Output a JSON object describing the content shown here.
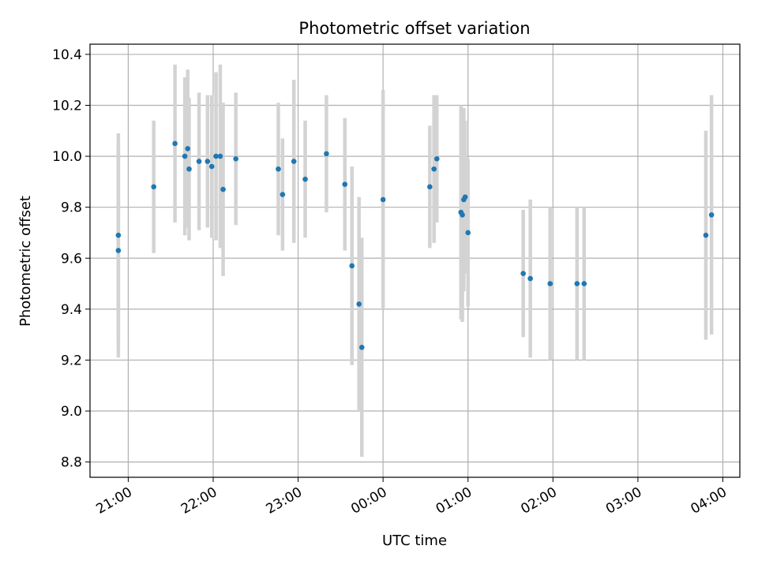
{
  "chart_data": {
    "type": "scatter",
    "title": "Photometric offset variation",
    "xlabel": "UTC time",
    "ylabel": "Photometric offset",
    "grid": true,
    "xlim": [
      "20:33",
      "04:12"
    ],
    "ylim": [
      8.74,
      10.44
    ],
    "x_ticks": [
      "21:00",
      "22:00",
      "23:00",
      "00:00",
      "01:00",
      "02:00",
      "03:00",
      "04:00"
    ],
    "y_ticks": [
      "8.8",
      "9.0",
      "9.2",
      "9.4",
      "9.6",
      "9.8",
      "10.0",
      "10.2",
      "10.4"
    ],
    "colors": {
      "point": "#1f77b4",
      "errorbar": "#d3d3d3",
      "grid": "#b0b0b0"
    },
    "points": [
      {
        "t": "20:53",
        "y": 9.69,
        "err": 0.4
      },
      {
        "t": "20:53",
        "y": 9.63,
        "err": 0.42
      },
      {
        "t": "21:18",
        "y": 9.88,
        "err": 0.26
      },
      {
        "t": "21:33",
        "y": 10.05,
        "err": 0.31
      },
      {
        "t": "21:40",
        "y": 10.0,
        "err": 0.31
      },
      {
        "t": "21:42",
        "y": 10.03,
        "err": 0.31
      },
      {
        "t": "21:43",
        "y": 9.95,
        "err": 0.28
      },
      {
        "t": "21:50",
        "y": 9.98,
        "err": 0.27
      },
      {
        "t": "21:56",
        "y": 9.98,
        "err": 0.26
      },
      {
        "t": "21:59",
        "y": 9.96,
        "err": 0.28
      },
      {
        "t": "22:02",
        "y": 10.0,
        "err": 0.33
      },
      {
        "t": "22:05",
        "y": 10.0,
        "err": 0.36
      },
      {
        "t": "22:07",
        "y": 9.87,
        "err": 0.34
      },
      {
        "t": "22:16",
        "y": 9.99,
        "err": 0.26
      },
      {
        "t": "22:46",
        "y": 9.95,
        "err": 0.26
      },
      {
        "t": "22:49",
        "y": 9.85,
        "err": 0.22
      },
      {
        "t": "22:57",
        "y": 9.98,
        "err": 0.32
      },
      {
        "t": "23:05",
        "y": 9.91,
        "err": 0.23
      },
      {
        "t": "23:20",
        "y": 10.01,
        "err": 0.23
      },
      {
        "t": "23:33",
        "y": 9.89,
        "err": 0.26
      },
      {
        "t": "23:38",
        "y": 9.57,
        "err": 0.39
      },
      {
        "t": "23:43",
        "y": 9.42,
        "err": 0.42
      },
      {
        "t": "23:45",
        "y": 9.25,
        "err": 0.43
      },
      {
        "t": "00:00",
        "y": 9.83,
        "err": 0.43
      },
      {
        "t": "00:33",
        "y": 9.88,
        "err": 0.24
      },
      {
        "t": "00:36",
        "y": 9.95,
        "err": 0.29
      },
      {
        "t": "00:38",
        "y": 9.99,
        "err": 0.25
      },
      {
        "t": "00:55",
        "y": 9.78,
        "err": 0.42
      },
      {
        "t": "00:56",
        "y": 9.77,
        "err": 0.42
      },
      {
        "t": "00:57",
        "y": 9.83,
        "err": 0.36
      },
      {
        "t": "00:58",
        "y": 9.84,
        "err": 0.3
      },
      {
        "t": "01:00",
        "y": 9.7,
        "err": 0.29
      },
      {
        "t": "01:39",
        "y": 9.54,
        "err": 0.25
      },
      {
        "t": "01:44",
        "y": 9.52,
        "err": 0.31
      },
      {
        "t": "01:58",
        "y": 9.5,
        "err": 0.3
      },
      {
        "t": "02:17",
        "y": 9.5,
        "err": 0.3
      },
      {
        "t": "02:22",
        "y": 9.5,
        "err": 0.3
      },
      {
        "t": "03:48",
        "y": 9.69,
        "err": 0.41
      },
      {
        "t": "03:52",
        "y": 9.77,
        "err": 0.47
      }
    ]
  }
}
